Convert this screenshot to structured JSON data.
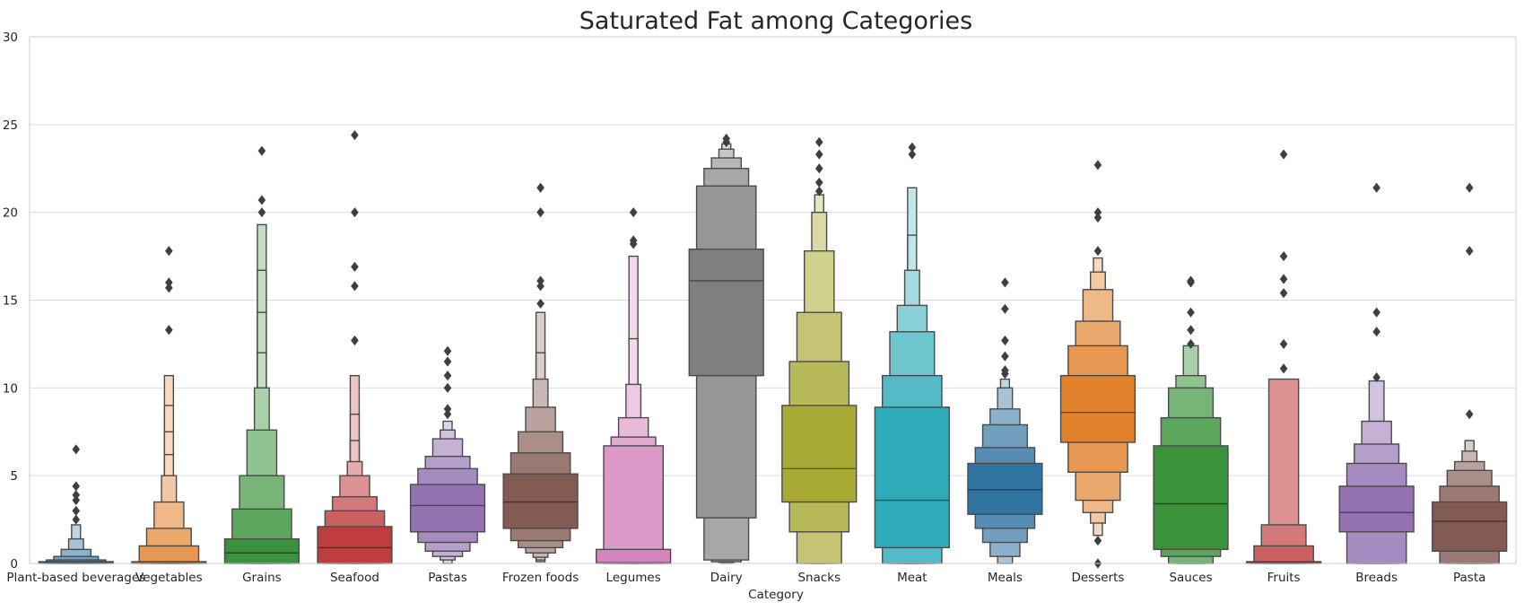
{
  "chart_data": {
    "type": "boxenplot",
    "title": "Saturated Fat among Categories",
    "xlabel": "Category",
    "ylabel": "",
    "ylim": [
      0,
      30
    ],
    "yticks": [
      0,
      5,
      10,
      15,
      20,
      25,
      30
    ],
    "grid": true,
    "categories": [
      {
        "name": "Plant-based beverages",
        "color": "#3274a1",
        "median": 0.05,
        "boxes": [
          [
            0,
            0.1
          ],
          [
            0,
            0.2
          ],
          [
            0,
            0.4
          ],
          [
            0,
            0.8
          ],
          [
            0,
            1.4
          ],
          [
            0,
            2.2
          ]
        ],
        "outliers": [
          6.5,
          4.4,
          3.9,
          3.6,
          3.0,
          2.5
        ]
      },
      {
        "name": "Vegetables",
        "color": "#e1812c",
        "median": 0.05,
        "boxes": [
          [
            0,
            0.1
          ],
          [
            0,
            1.0
          ],
          [
            0,
            2.0
          ],
          [
            0,
            3.5
          ],
          [
            0,
            5.0
          ],
          [
            0,
            6.2
          ],
          [
            0,
            7.5
          ],
          [
            0,
            9.0
          ],
          [
            0,
            10.7
          ]
        ],
        "outliers": [
          17.8,
          16.0,
          15.7,
          13.3
        ]
      },
      {
        "name": "Grains",
        "color": "#3a923a",
        "median": 0.6,
        "boxes": [
          [
            0,
            1.4
          ],
          [
            0,
            3.1
          ],
          [
            0,
            5.0
          ],
          [
            0,
            7.6
          ],
          [
            0,
            10.0
          ],
          [
            0,
            12.0
          ],
          [
            0,
            14.3
          ],
          [
            0,
            16.7
          ],
          [
            0,
            19.3
          ]
        ],
        "outliers": [
          23.5,
          20.7,
          20.0
        ]
      },
      {
        "name": "Seafood",
        "color": "#c03d3e",
        "median": 0.9,
        "boxes": [
          [
            0,
            2.1
          ],
          [
            0,
            3.0
          ],
          [
            0,
            3.8
          ],
          [
            0,
            5.0
          ],
          [
            0,
            5.8
          ],
          [
            0,
            7.0
          ],
          [
            0,
            8.5
          ],
          [
            0,
            10.7
          ]
        ],
        "outliers": [
          24.4,
          20.0,
          16.9,
          15.8,
          12.7
        ]
      },
      {
        "name": "Pastas",
        "color": "#9372b2",
        "median": 3.3,
        "boxes": [
          [
            1.8,
            4.5
          ],
          [
            1.2,
            5.4
          ],
          [
            0.7,
            6.1
          ],
          [
            0.4,
            7.1
          ],
          [
            0.2,
            7.6
          ],
          [
            0,
            8.1
          ]
        ],
        "outliers": [
          12.1,
          11.5,
          10.7,
          10.0,
          8.8,
          8.5
        ]
      },
      {
        "name": "Frozen foods",
        "color": "#845b53",
        "median": 3.5,
        "boxes": [
          [
            2.0,
            5.1
          ],
          [
            1.3,
            6.3
          ],
          [
            0.9,
            7.5
          ],
          [
            0.6,
            8.9
          ],
          [
            0.35,
            10.5
          ],
          [
            0.2,
            12.0
          ],
          [
            0.1,
            14.3
          ]
        ],
        "outliers": [
          21.4,
          20.0,
          16.1,
          15.8,
          14.8
        ]
      },
      {
        "name": "Legumes",
        "color": "#d684bd",
        "median": 0.05,
        "boxes": [
          [
            0,
            0.8
          ],
          [
            0,
            6.7
          ],
          [
            0,
            7.2
          ],
          [
            0,
            8.3
          ],
          [
            0,
            10.2
          ],
          [
            0,
            12.8
          ],
          [
            0,
            17.5
          ]
        ],
        "outliers": [
          20.0,
          18.4,
          18.2
        ]
      },
      {
        "name": "Dairy",
        "color": "#7f7f7f",
        "median": 16.1,
        "boxes": [
          [
            10.7,
            17.9
          ],
          [
            2.6,
            21.5
          ],
          [
            0.2,
            22.5
          ],
          [
            0.1,
            23.1
          ],
          [
            0.05,
            23.6
          ],
          [
            0,
            23.9
          ]
        ],
        "outliers": [
          24.2,
          24.0
        ]
      },
      {
        "name": "Snacks",
        "color": "#a9aa35",
        "median": 5.4,
        "boxes": [
          [
            3.5,
            9.0
          ],
          [
            1.8,
            11.5
          ],
          [
            0,
            14.3
          ],
          [
            0,
            17.8
          ],
          [
            0,
            20.0
          ],
          [
            0,
            21.0
          ]
        ],
        "outliers": [
          24.0,
          23.3,
          22.5,
          21.7,
          21.2
        ]
      },
      {
        "name": "Meat",
        "color": "#2eabb8",
        "median": 3.6,
        "boxes": [
          [
            0.9,
            8.9
          ],
          [
            0,
            10.7
          ],
          [
            0,
            13.2
          ],
          [
            0,
            14.7
          ],
          [
            0,
            16.7
          ],
          [
            0,
            18.7
          ],
          [
            0,
            21.4
          ]
        ],
        "outliers": [
          23.7,
          23.3
        ]
      },
      {
        "name": "Meals",
        "color": "#3274a1",
        "median": 4.2,
        "boxes": [
          [
            2.8,
            5.7
          ],
          [
            2.0,
            6.6
          ],
          [
            1.2,
            7.9
          ],
          [
            0.4,
            8.8
          ],
          [
            0,
            10.0
          ],
          [
            0,
            10.5
          ]
        ],
        "outliers": [
          16.0,
          14.5,
          12.7,
          11.8,
          11.0,
          10.8
        ]
      },
      {
        "name": "Desserts",
        "color": "#e1812c",
        "median": 8.6,
        "boxes": [
          [
            6.9,
            10.7
          ],
          [
            5.2,
            12.4
          ],
          [
            3.6,
            13.8
          ],
          [
            2.9,
            15.6
          ],
          [
            2.3,
            16.6
          ],
          [
            1.6,
            17.4
          ]
        ],
        "outliers": [
          22.7,
          20.0,
          19.7,
          17.8,
          1.3,
          0.0
        ]
      },
      {
        "name": "Sauces",
        "color": "#3a923a",
        "median": 3.4,
        "boxes": [
          [
            0.8,
            6.7
          ],
          [
            0.4,
            8.3
          ],
          [
            0,
            10.0
          ],
          [
            0,
            10.7
          ],
          [
            0,
            12.4
          ]
        ],
        "outliers": [
          16.1,
          16.0,
          14.3,
          13.3,
          12.5
        ]
      },
      {
        "name": "Fruits",
        "color": "#c03d3e",
        "median": 0.05,
        "boxes": [
          [
            0,
            0.1
          ],
          [
            0,
            1.0
          ],
          [
            0,
            2.2
          ],
          [
            0,
            10.5
          ]
        ],
        "outliers": [
          23.3,
          17.5,
          16.2,
          15.4,
          12.5,
          11.1
        ]
      },
      {
        "name": "Breads",
        "color": "#9372b2",
        "median": 2.9,
        "boxes": [
          [
            1.8,
            4.4
          ],
          [
            0,
            5.7
          ],
          [
            0,
            6.8
          ],
          [
            0,
            8.1
          ],
          [
            0,
            10.4
          ]
        ],
        "outliers": [
          21.4,
          14.3,
          13.2,
          10.6
        ]
      },
      {
        "name": "Pasta",
        "color": "#845b53",
        "median": 2.4,
        "boxes": [
          [
            0.7,
            3.5
          ],
          [
            0,
            4.4
          ],
          [
            0,
            5.3
          ],
          [
            0,
            5.8
          ],
          [
            0,
            6.4
          ],
          [
            0,
            7.0
          ]
        ],
        "outliers": [
          21.4,
          17.8,
          8.5
        ]
      }
    ]
  }
}
